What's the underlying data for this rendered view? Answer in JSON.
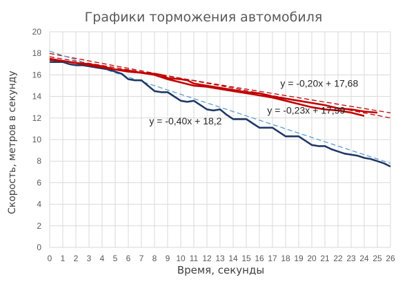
{
  "colors": {
    "navy": "#1f3864",
    "red": "#c00000",
    "blue_trend": "#5b9bd5",
    "red_trend": "#c00000",
    "grid": "#d9d9d9"
  },
  "chart_data": {
    "type": "line",
    "title": "Графики торможения автомобиля",
    "xlabel": "Время, секунды",
    "ylabel": "Скорость, метров в секунду",
    "xlim": [
      0,
      26
    ],
    "ylim": [
      0,
      20
    ],
    "x_ticks": [
      "0",
      "1",
      "2",
      "3",
      "4",
      "5",
      "6",
      "7",
      "8",
      "9",
      "10",
      "11",
      "12",
      "13",
      "14",
      "15",
      "16",
      "17",
      "18",
      "19",
      "20",
      "21",
      "22",
      "23",
      "24",
      "25",
      "26"
    ],
    "y_ticks": [
      "0",
      "2",
      "4",
      "6",
      "8",
      "10",
      "12",
      "14",
      "16",
      "18",
      "20"
    ],
    "grid": true,
    "legend": "none",
    "series": [
      {
        "color": "#1f3864",
        "x": [
          0,
          1,
          1.5,
          2,
          2.5,
          3,
          3.5,
          4,
          4.5,
          5,
          5.5,
          6,
          6.5,
          7,
          7.5,
          8,
          8.5,
          9,
          9.5,
          10,
          10.5,
          11,
          11.5,
          12,
          12.5,
          13,
          13.5,
          14,
          14.5,
          15,
          15.5,
          16,
          16.5,
          17,
          17.5,
          18,
          18.5,
          19,
          19.5,
          20,
          20.5,
          21,
          21.5,
          22,
          22.5,
          23,
          23.5,
          24,
          24.5,
          25,
          25.5,
          26
        ],
        "y": [
          17.2,
          17.2,
          17.0,
          16.9,
          16.9,
          16.8,
          16.7,
          16.6,
          16.5,
          16.3,
          16.1,
          15.6,
          15.5,
          15.5,
          15.0,
          14.5,
          14.4,
          14.4,
          14.0,
          13.6,
          13.5,
          13.6,
          13.2,
          12.8,
          12.7,
          12.8,
          12.3,
          11.9,
          11.9,
          11.9,
          11.5,
          11.1,
          11.1,
          11.1,
          10.7,
          10.3,
          10.3,
          10.3,
          9.9,
          9.5,
          9.4,
          9.4,
          9.1,
          8.9,
          8.7,
          8.6,
          8.5,
          8.3,
          8.2,
          8.0,
          7.8,
          7.5
        ]
      },
      {
        "color": "#c00000",
        "x": [
          0,
          1,
          2,
          3,
          4,
          5,
          6,
          7,
          8,
          8.5,
          9,
          10,
          10.5,
          11,
          12,
          13,
          14,
          15,
          16,
          17,
          18,
          19,
          20,
          21,
          22,
          23,
          24,
          25
        ],
        "y": [
          17.5,
          17.3,
          17.1,
          17.0,
          16.8,
          16.5,
          16.4,
          16.2,
          16.1,
          16.0,
          15.7,
          15.6,
          15.5,
          15.2,
          15.0,
          14.8,
          14.6,
          14.4,
          14.3,
          14.0,
          13.8,
          13.6,
          13.4,
          13.2,
          12.9,
          12.8,
          12.6,
          12.5
        ]
      },
      {
        "color": "#c00000",
        "x": [
          0,
          1,
          2,
          3,
          4,
          5,
          6,
          7,
          8,
          9,
          10,
          11,
          12,
          13,
          14,
          15,
          16,
          17,
          18,
          19,
          20,
          21,
          22,
          23,
          24
        ],
        "y": [
          17.4,
          17.3,
          17.1,
          16.9,
          16.7,
          16.5,
          16.3,
          16.2,
          16.0,
          15.6,
          15.3,
          15.0,
          14.9,
          14.7,
          14.5,
          14.3,
          14.1,
          13.9,
          13.6,
          13.3,
          13.0,
          12.8,
          12.7,
          12.5,
          12.2
        ]
      }
    ],
    "trendlines": [
      {
        "equation": "y = -0,20x + 17,68",
        "slope": -0.2,
        "intercept": 17.68,
        "color": "#c00000",
        "style": "dashed"
      },
      {
        "equation": "y = -0,23x + 17,99",
        "slope": -0.23,
        "intercept": 17.99,
        "color": "#c00000",
        "style": "dashed"
      },
      {
        "equation": "y = -0,40x + 18,2",
        "slope": -0.4,
        "intercept": 18.2,
        "color": "#5b9bd5",
        "style": "dashed"
      }
    ]
  }
}
